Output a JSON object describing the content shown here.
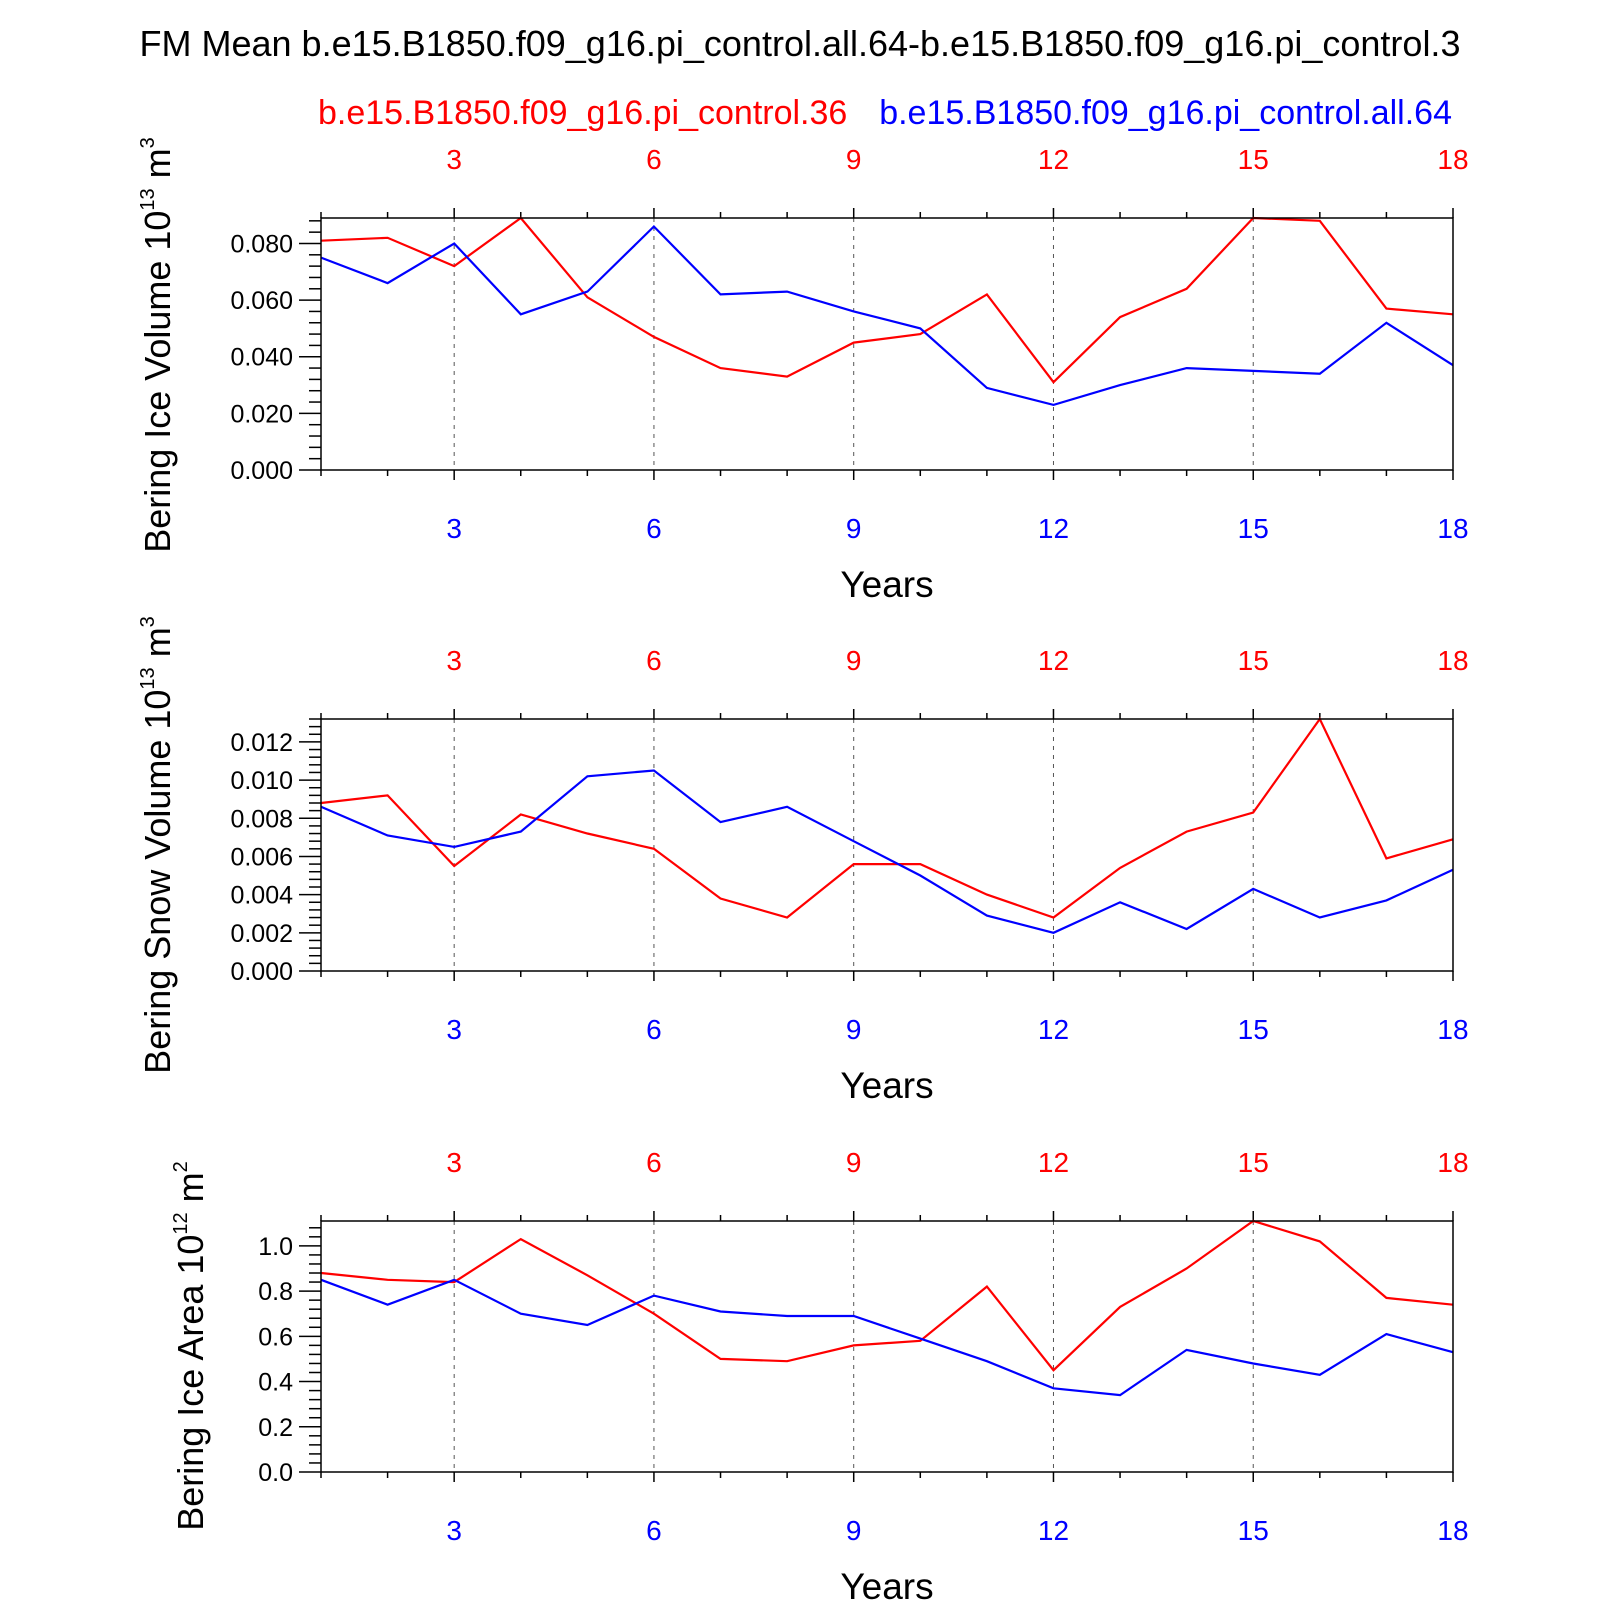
{
  "figure": {
    "title": "FM Mean b.e15.B1850.f09_g16.pi_control.all.64-b.e15.B1850.f09_g16.pi_control.3"
  },
  "legend": {
    "red_label": "b.e15.B1850.f09_g16.pi_control.36",
    "blue_label": "b.e15.B1850.f09_g16.pi_control.all.64",
    "red_color": "#ff0000",
    "blue_color": "#0000ff"
  },
  "chart_data": [
    {
      "type": "line",
      "ylabel_main": "Bering Ice Volume 10",
      "ylabel_exp": "13",
      "ylabel_unit": " m",
      "ylabel_unit_exp": "3",
      "xlabel": "Years",
      "x": [
        1,
        2,
        3,
        4,
        5,
        6,
        7,
        8,
        9,
        10,
        11,
        12,
        13,
        14,
        15,
        16,
        17,
        18
      ],
      "xlim": [
        1,
        18
      ],
      "ylim": [
        0,
        0.089
      ],
      "xticks": [
        3,
        6,
        9,
        12,
        15,
        18
      ],
      "xtick_labels": [
        "3",
        "6",
        "9",
        "12",
        "15",
        "18"
      ],
      "yticks": [
        0,
        0.02,
        0.04,
        0.06,
        0.08
      ],
      "ytick_labels": [
        "0.000",
        "0.020",
        "0.040",
        "0.060",
        "0.080"
      ],
      "series": [
        {
          "name": "b.e15.B1850.f09_g16.pi_control.36",
          "color": "#ff0000",
          "values": [
            0.081,
            0.082,
            0.072,
            0.089,
            0.061,
            0.047,
            0.036,
            0.033,
            0.045,
            0.048,
            0.062,
            0.031,
            0.054,
            0.064,
            0.089,
            0.088,
            0.057,
            0.055
          ]
        },
        {
          "name": "b.e15.B1850.f09_g16.pi_control.all.64",
          "color": "#0000ff",
          "values": [
            0.075,
            0.066,
            0.08,
            0.055,
            0.063,
            0.086,
            0.062,
            0.063,
            0.056,
            0.05,
            0.029,
            0.023,
            0.03,
            0.036,
            0.035,
            0.034,
            0.052,
            0.037
          ]
        }
      ]
    },
    {
      "type": "line",
      "ylabel_main": "Bering Snow Volume 10",
      "ylabel_exp": "13",
      "ylabel_unit": " m",
      "ylabel_unit_exp": "3",
      "xlabel": "Years",
      "x": [
        1,
        2,
        3,
        4,
        5,
        6,
        7,
        8,
        9,
        10,
        11,
        12,
        13,
        14,
        15,
        16,
        17,
        18
      ],
      "xlim": [
        1,
        18
      ],
      "ylim": [
        0,
        0.0132
      ],
      "xticks": [
        3,
        6,
        9,
        12,
        15,
        18
      ],
      "xtick_labels": [
        "3",
        "6",
        "9",
        "12",
        "15",
        "18"
      ],
      "yticks": [
        0,
        0.002,
        0.004,
        0.006,
        0.008,
        0.01,
        0.012
      ],
      "ytick_labels": [
        "0.000",
        "0.002",
        "0.004",
        "0.006",
        "0.008",
        "0.010",
        "0.012"
      ],
      "series": [
        {
          "name": "b.e15.B1850.f09_g16.pi_control.36",
          "color": "#ff0000",
          "values": [
            0.0088,
            0.0092,
            0.0055,
            0.0082,
            0.0072,
            0.0064,
            0.0038,
            0.0028,
            0.0056,
            0.0056,
            0.004,
            0.0028,
            0.0054,
            0.0073,
            0.0083,
            0.0132,
            0.0059,
            0.0069
          ]
        },
        {
          "name": "b.e15.B1850.f09_g16.pi_control.all.64",
          "color": "#0000ff",
          "values": [
            0.0086,
            0.0071,
            0.0065,
            0.0073,
            0.0102,
            0.0105,
            0.0078,
            0.0086,
            0.0068,
            0.005,
            0.0029,
            0.002,
            0.0036,
            0.0022,
            0.0043,
            0.0028,
            0.0037,
            0.0053
          ]
        }
      ]
    },
    {
      "type": "line",
      "ylabel_main": "Bering Ice Area 10",
      "ylabel_exp": "12",
      "ylabel_unit": " m",
      "ylabel_unit_exp": "2",
      "xlabel": "Years",
      "x": [
        1,
        2,
        3,
        4,
        5,
        6,
        7,
        8,
        9,
        10,
        11,
        12,
        13,
        14,
        15,
        16,
        17,
        18
      ],
      "xlim": [
        1,
        18
      ],
      "ylim": [
        0,
        1.11
      ],
      "xticks": [
        3,
        6,
        9,
        12,
        15,
        18
      ],
      "xtick_labels": [
        "3",
        "6",
        "9",
        "12",
        "15",
        "18"
      ],
      "yticks": [
        0,
        0.2,
        0.4,
        0.6,
        0.8,
        1.0
      ],
      "ytick_labels": [
        "0.0",
        "0.2",
        "0.4",
        "0.6",
        "0.8",
        "1.0"
      ],
      "series": [
        {
          "name": "b.e15.B1850.f09_g16.pi_control.36",
          "color": "#ff0000",
          "values": [
            0.88,
            0.85,
            0.84,
            1.03,
            0.87,
            0.7,
            0.5,
            0.49,
            0.56,
            0.58,
            0.82,
            0.45,
            0.73,
            0.9,
            1.11,
            1.02,
            0.77,
            0.74
          ]
        },
        {
          "name": "b.e15.B1850.f09_g16.pi_control.all.64",
          "color": "#0000ff",
          "values": [
            0.85,
            0.74,
            0.85,
            0.7,
            0.65,
            0.78,
            0.71,
            0.69,
            0.69,
            0.59,
            0.49,
            0.37,
            0.34,
            0.54,
            0.48,
            0.43,
            0.61,
            0.53
          ]
        }
      ]
    }
  ]
}
